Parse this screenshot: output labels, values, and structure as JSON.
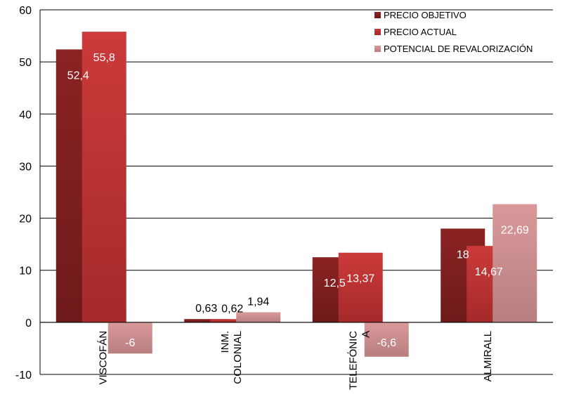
{
  "chart_data": {
    "type": "bar",
    "title": "",
    "xlabel": "",
    "ylabel": "",
    "ylim": [
      -10,
      60
    ],
    "yticks": [
      -10,
      0,
      10,
      20,
      30,
      40,
      50,
      60
    ],
    "grid": true,
    "legend_position": "top-right",
    "categories": [
      [
        "VISCOFÁN"
      ],
      [
        "INM.",
        "COLONIAL"
      ],
      [
        "TELEFÓNIC",
        "A"
      ],
      [
        "ALMIRALL"
      ]
    ],
    "series": [
      {
        "name": "PRECIO OBJETIVO",
        "color": "#8b2323",
        "color_dark": "#6e1a1a",
        "values": [
          52.4,
          0.63,
          12.5,
          18
        ],
        "labels": [
          "52,4",
          "0,63",
          "12,5",
          "18"
        ]
      },
      {
        "name": "PRECIO ACTUAL",
        "color": "#cc3a3a",
        "color_dark": "#a52a2a",
        "values": [
          55.8,
          0.62,
          13.37,
          14.67
        ],
        "labels": [
          "55,8",
          "0,62",
          "13,37",
          "14,67"
        ]
      },
      {
        "name": "POTENCIAL DE REVALORIZACIÓN",
        "color": "#d9999b",
        "color_dark": "#b87f80",
        "values": [
          -6,
          1.94,
          -6.6,
          22.69
        ],
        "labels": [
          "-6",
          "1,94",
          "-6,6",
          "22,69"
        ]
      }
    ]
  }
}
